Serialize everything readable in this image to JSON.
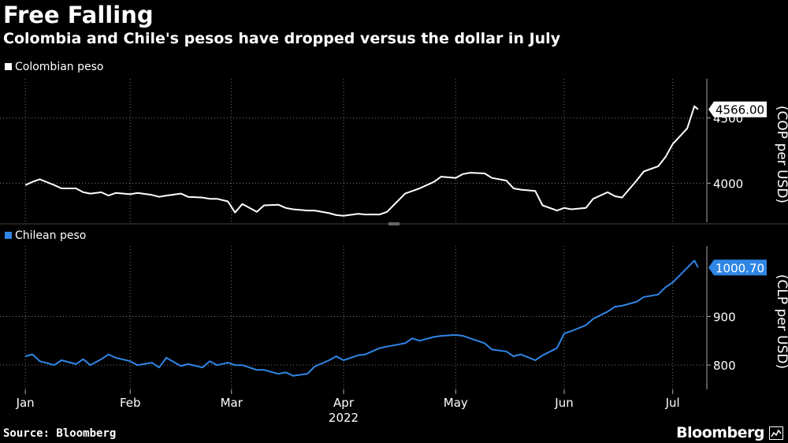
{
  "title": "Free Falling",
  "subtitle": "Colombia and Chile's pesos have dropped versus the dollar in July",
  "source": "Source: Bloomberg",
  "brand": "Bloomberg",
  "chart_data": [
    {
      "type": "line",
      "legend": "Colombian peso",
      "color": "#ffffff",
      "ylabel": "(COP per USD)",
      "yticks": [
        4000,
        4500
      ],
      "ylim": [
        3700,
        4800
      ],
      "last_value_label": "4566.00",
      "x": [
        "2022-01-03",
        "2022-01-05",
        "2022-01-07",
        "2022-01-11",
        "2022-01-13",
        "2022-01-17",
        "2022-01-19",
        "2022-01-21",
        "2022-01-24",
        "2022-01-26",
        "2022-01-28",
        "2022-02-01",
        "2022-02-03",
        "2022-02-07",
        "2022-02-09",
        "2022-02-11",
        "2022-02-15",
        "2022-02-17",
        "2022-02-21",
        "2022-02-23",
        "2022-02-25",
        "2022-02-28",
        "2022-03-02",
        "2022-03-04",
        "2022-03-08",
        "2022-03-10",
        "2022-03-14",
        "2022-03-16",
        "2022-03-18",
        "2022-03-22",
        "2022-03-24",
        "2022-03-28",
        "2022-03-30",
        "2022-04-01",
        "2022-04-05",
        "2022-04-07",
        "2022-04-11",
        "2022-04-13",
        "2022-04-18",
        "2022-04-20",
        "2022-04-22",
        "2022-04-26",
        "2022-04-28",
        "2022-05-02",
        "2022-05-04",
        "2022-05-06",
        "2022-05-10",
        "2022-05-12",
        "2022-05-16",
        "2022-05-18",
        "2022-05-20",
        "2022-05-24",
        "2022-05-26",
        "2022-05-30",
        "2022-06-01",
        "2022-06-03",
        "2022-06-07",
        "2022-06-09",
        "2022-06-13",
        "2022-06-15",
        "2022-06-17",
        "2022-06-21",
        "2022-06-23",
        "2022-06-27",
        "2022-06-29",
        "2022-07-01",
        "2022-07-05",
        "2022-07-07",
        "2022-07-08"
      ],
      "values": [
        3985,
        4010,
        4030,
        3985,
        3960,
        3960,
        3930,
        3920,
        3930,
        3905,
        3925,
        3915,
        3925,
        3910,
        3895,
        3905,
        3920,
        3895,
        3890,
        3880,
        3880,
        3860,
        3775,
        3840,
        3780,
        3830,
        3835,
        3810,
        3800,
        3790,
        3790,
        3770,
        3755,
        3750,
        3765,
        3760,
        3760,
        3780,
        3920,
        3940,
        3960,
        4010,
        4050,
        4040,
        4070,
        4080,
        4075,
        4040,
        4020,
        3960,
        3950,
        3940,
        3830,
        3790,
        3810,
        3800,
        3810,
        3880,
        3930,
        3900,
        3890,
        4020,
        4090,
        4130,
        4200,
        4300,
        4420,
        4590,
        4566
      ]
    },
    {
      "type": "line",
      "legend": "Chilean peso",
      "color": "#2f86e6",
      "ylabel": "(CLP per USD)",
      "yticks": [
        800,
        900
      ],
      "ylim": [
        750,
        1045
      ],
      "last_value_label": "1000.70",
      "x": [
        "2022-01-03",
        "2022-01-05",
        "2022-01-07",
        "2022-01-11",
        "2022-01-13",
        "2022-01-17",
        "2022-01-19",
        "2022-01-21",
        "2022-01-24",
        "2022-01-26",
        "2022-01-28",
        "2022-02-01",
        "2022-02-03",
        "2022-02-07",
        "2022-02-09",
        "2022-02-11",
        "2022-02-15",
        "2022-02-17",
        "2022-02-21",
        "2022-02-23",
        "2022-02-25",
        "2022-02-28",
        "2022-03-02",
        "2022-03-04",
        "2022-03-08",
        "2022-03-10",
        "2022-03-14",
        "2022-03-16",
        "2022-03-18",
        "2022-03-22",
        "2022-03-24",
        "2022-03-28",
        "2022-03-30",
        "2022-04-01",
        "2022-04-05",
        "2022-04-07",
        "2022-04-11",
        "2022-04-13",
        "2022-04-18",
        "2022-04-20",
        "2022-04-22",
        "2022-04-26",
        "2022-04-28",
        "2022-05-02",
        "2022-05-04",
        "2022-05-06",
        "2022-05-10",
        "2022-05-12",
        "2022-05-16",
        "2022-05-18",
        "2022-05-20",
        "2022-05-24",
        "2022-05-26",
        "2022-05-30",
        "2022-06-01",
        "2022-06-03",
        "2022-06-07",
        "2022-06-09",
        "2022-06-13",
        "2022-06-15",
        "2022-06-17",
        "2022-06-21",
        "2022-06-23",
        "2022-06-27",
        "2022-06-29",
        "2022-07-01",
        "2022-07-05",
        "2022-07-07",
        "2022-07-08"
      ],
      "values": [
        818,
        822,
        808,
        800,
        810,
        802,
        812,
        800,
        812,
        822,
        815,
        808,
        800,
        805,
        795,
        815,
        798,
        802,
        795,
        808,
        800,
        805,
        800,
        800,
        790,
        790,
        782,
        785,
        778,
        782,
        797,
        810,
        818,
        810,
        820,
        822,
        835,
        838,
        845,
        855,
        850,
        858,
        860,
        862,
        860,
        855,
        845,
        832,
        828,
        818,
        822,
        810,
        820,
        835,
        865,
        870,
        882,
        895,
        910,
        920,
        922,
        930,
        940,
        945,
        960,
        970,
        1000,
        1015,
        1000.7
      ]
    }
  ],
  "x_axis": {
    "ticks": [
      {
        "label": "Jan",
        "date": "2022-01-03"
      },
      {
        "label": "Feb",
        "date": "2022-02-01"
      },
      {
        "label": "Mar",
        "date": "2022-03-01"
      },
      {
        "label": "Apr",
        "date": "2022-04-01"
      },
      {
        "label": "May",
        "date": "2022-05-02"
      },
      {
        "label": "Jun",
        "date": "2022-06-01"
      },
      {
        "label": "Jul",
        "date": "2022-07-01"
      }
    ],
    "year_label": "2022",
    "range": [
      "2021-12-27",
      "2022-07-10"
    ]
  }
}
